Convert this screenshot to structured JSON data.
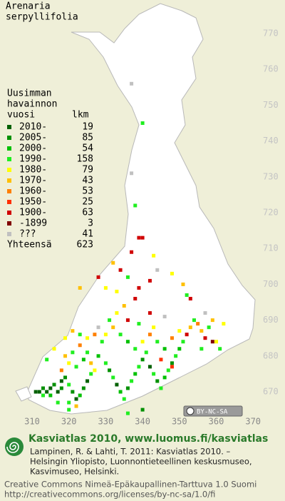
{
  "map": {
    "title": [
      "Arenaria",
      "serpyllifolia"
    ],
    "legend": {
      "header": [
        "Uusimman",
        "havainnon",
        "vuosi"
      ],
      "count_header": "lkm",
      "rows": [
        {
          "label": "2010-",
          "count": 19,
          "color": "#006000"
        },
        {
          "label": "2005-",
          "count": 85,
          "color": "#009000"
        },
        {
          "label": "2000-",
          "count": 54,
          "color": "#00c000"
        },
        {
          "label": "1990-",
          "count": 158,
          "color": "#20ee20"
        },
        {
          "label": "1980-",
          "count": 79,
          "color": "#ffff00"
        },
        {
          "label": "1970-",
          "count": 43,
          "color": "#ffc000"
        },
        {
          "label": "1960-",
          "count": 53,
          "color": "#ff8000"
        },
        {
          "label": "1950-",
          "count": 25,
          "color": "#ff3000"
        },
        {
          "label": "1900-",
          "count": 63,
          "color": "#d00000"
        },
        {
          "label": "-1899",
          "count": 3,
          "color": "#800000"
        },
        {
          "label": "???",
          "count": 41,
          "color": "#c0c0c0"
        }
      ],
      "total_label": "Yhteensä",
      "total": 623
    },
    "yticks": [
      770,
      760,
      750,
      740,
      730,
      720,
      710,
      700,
      690,
      680,
      670
    ],
    "xticks": [
      310,
      320,
      330,
      340,
      350,
      360,
      370
    ],
    "squares": [
      [
        311,
        670,
        0
      ],
      [
        312,
        670,
        0
      ],
      [
        313,
        671,
        1
      ],
      [
        314,
        670,
        0
      ],
      [
        315,
        671,
        0
      ],
      [
        316,
        672,
        1
      ],
      [
        313,
        669,
        3
      ],
      [
        315,
        669,
        2
      ],
      [
        317,
        670,
        0
      ],
      [
        318,
        671,
        1
      ],
      [
        318,
        673,
        0
      ],
      [
        319,
        674,
        1
      ],
      [
        320,
        672,
        3
      ],
      [
        321,
        670,
        1
      ],
      [
        322,
        668,
        0
      ],
      [
        320,
        667,
        3
      ],
      [
        323,
        669,
        2
      ],
      [
        324,
        671,
        1
      ],
      [
        325,
        673,
        0
      ],
      [
        326,
        675,
        3
      ],
      [
        327,
        676,
        4
      ],
      [
        326,
        678,
        5
      ],
      [
        324,
        679,
        2
      ],
      [
        322,
        677,
        3
      ],
      [
        320,
        678,
        4
      ],
      [
        319,
        680,
        5
      ],
      [
        321,
        681,
        3
      ],
      [
        323,
        683,
        6
      ],
      [
        325,
        681,
        3
      ],
      [
        328,
        680,
        2
      ],
      [
        330,
        678,
        3
      ],
      [
        331,
        676,
        1
      ],
      [
        332,
        674,
        3
      ],
      [
        333,
        672,
        0
      ],
      [
        334,
        670,
        2
      ],
      [
        335,
        668,
        3
      ],
      [
        336,
        671,
        1
      ],
      [
        337,
        673,
        3
      ],
      [
        338,
        675,
        2
      ],
      [
        339,
        677,
        3
      ],
      [
        340,
        679,
        1
      ],
      [
        341,
        681,
        3
      ],
      [
        342,
        677,
        0
      ],
      [
        343,
        675,
        3
      ],
      [
        344,
        673,
        1
      ],
      [
        345,
        671,
        3
      ],
      [
        346,
        674,
        2
      ],
      [
        347,
        676,
        3
      ],
      [
        348,
        678,
        1
      ],
      [
        349,
        680,
        3
      ],
      [
        350,
        682,
        2
      ],
      [
        351,
        684,
        3
      ],
      [
        352,
        686,
        8
      ],
      [
        353,
        688,
        5
      ],
      [
        354,
        690,
        3
      ],
      [
        355,
        689,
        6
      ],
      [
        356,
        687,
        5
      ],
      [
        357,
        685,
        8
      ],
      [
        358,
        688,
        3
      ],
      [
        359,
        690,
        5
      ],
      [
        360,
        684,
        4
      ],
      [
        361,
        682,
        3
      ],
      [
        329,
        684,
        3
      ],
      [
        330,
        686,
        4
      ],
      [
        332,
        688,
        5
      ],
      [
        334,
        686,
        3
      ],
      [
        336,
        684,
        2
      ],
      [
        338,
        682,
        3
      ],
      [
        340,
        684,
        4
      ],
      [
        342,
        686,
        6
      ],
      [
        344,
        684,
        3
      ],
      [
        346,
        682,
        2
      ],
      [
        348,
        685,
        6
      ],
      [
        350,
        687,
        4
      ],
      [
        328,
        688,
        10
      ],
      [
        331,
        690,
        3
      ],
      [
        333,
        692,
        4
      ],
      [
        336,
        690,
        8
      ],
      [
        339,
        689,
        3
      ],
      [
        343,
        688,
        4
      ],
      [
        327,
        686,
        6
      ],
      [
        325,
        685,
        4
      ],
      [
        323,
        686,
        3
      ],
      [
        335,
        694,
        5
      ],
      [
        338,
        696,
        8
      ],
      [
        333,
        698,
        4
      ],
      [
        346,
        691,
        10
      ],
      [
        353,
        696,
        8
      ],
      [
        352,
        697,
        3
      ],
      [
        356,
        682,
        3
      ],
      [
        359,
        684,
        9
      ],
      [
        362,
        689,
        4
      ],
      [
        334,
        704,
        8
      ],
      [
        332,
        706,
        5
      ],
      [
        336,
        702,
        3
      ],
      [
        328,
        702,
        8
      ],
      [
        330,
        699,
        4
      ],
      [
        339,
        699,
        8
      ],
      [
        342,
        701,
        8
      ],
      [
        337,
        709,
        8
      ],
      [
        343,
        708,
        4
      ],
      [
        339,
        713,
        8
      ],
      [
        340,
        713,
        8
      ],
      [
        338,
        722,
        3
      ],
      [
        337,
        731,
        10
      ],
      [
        340,
        745,
        3
      ],
      [
        337,
        756,
        10
      ],
      [
        344,
        704,
        10
      ],
      [
        348,
        703,
        4
      ],
      [
        351,
        700,
        5
      ],
      [
        323,
        699,
        5
      ],
      [
        316,
        682,
        4
      ],
      [
        314,
        679,
        3
      ],
      [
        318,
        676,
        6
      ],
      [
        336,
        664,
        3
      ],
      [
        340,
        665,
        1
      ],
      [
        322,
        666,
        5
      ],
      [
        317,
        667,
        3
      ],
      [
        320,
        665,
        3
      ],
      [
        348,
        677,
        7
      ],
      [
        345,
        679,
        7
      ],
      [
        342,
        692,
        8
      ],
      [
        357,
        692,
        10
      ],
      [
        319,
        685,
        4
      ],
      [
        321,
        687,
        5
      ]
    ],
    "license_badge": "BY-NC-SA",
    "footer": {
      "title": "Kasviatlas 2010, www.luomus.fi/kasviatlas",
      "citation": [
        "Lampinen, R. & Lahti, T. 2011: Kasviatlas 2010. –",
        "Helsingin Yliopisto, Luonnontieteellinen keskusmuseo,",
        "Kasvimuseo, Helsinki."
      ],
      "license": [
        "Creative Commons Nimeä-Epäkaupallinen-Tarttuva 1.0 Suomi",
        "http://creativecommons.org/licenses/by-nc-sa/1.0/fi"
      ]
    }
  }
}
